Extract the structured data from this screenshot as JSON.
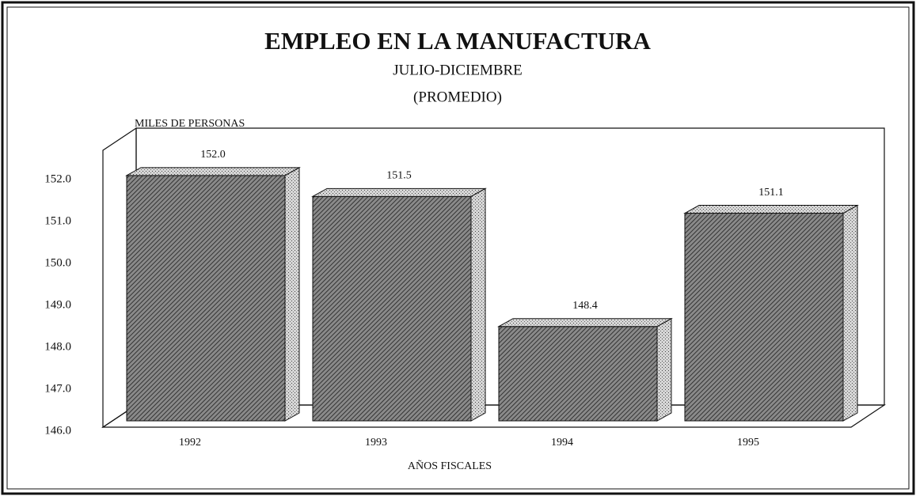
{
  "chart_data": {
    "type": "bar3d",
    "title": "EMPLEO EN LA MANUFACTURA",
    "subtitle": "JULIO-DICIEMBRE",
    "subtitle2": "(PROMEDIO)",
    "y_label": "MILES DE PERSONAS",
    "x_label": "AÑOS FISCALES",
    "categories": [
      "1992",
      "1993",
      "1994",
      "1995"
    ],
    "values": [
      152.0,
      151.5,
      148.4,
      151.1
    ],
    "value_labels": [
      "152.0",
      "151.5",
      "148.4",
      "151.1"
    ],
    "color": "#5a5a5a",
    "ylim": [
      146,
      152.6
    ],
    "yticks": [
      {
        "value": 146,
        "label": "146.0"
      },
      {
        "value": 147,
        "label": "147.0"
      },
      {
        "value": 148,
        "label": "148.0"
      },
      {
        "value": 149,
        "label": "149.0"
      },
      {
        "value": 150,
        "label": "150.0"
      },
      {
        "value": 151,
        "label": "151.0"
      },
      {
        "value": 152,
        "label": "152.0"
      }
    ],
    "grid": false
  }
}
